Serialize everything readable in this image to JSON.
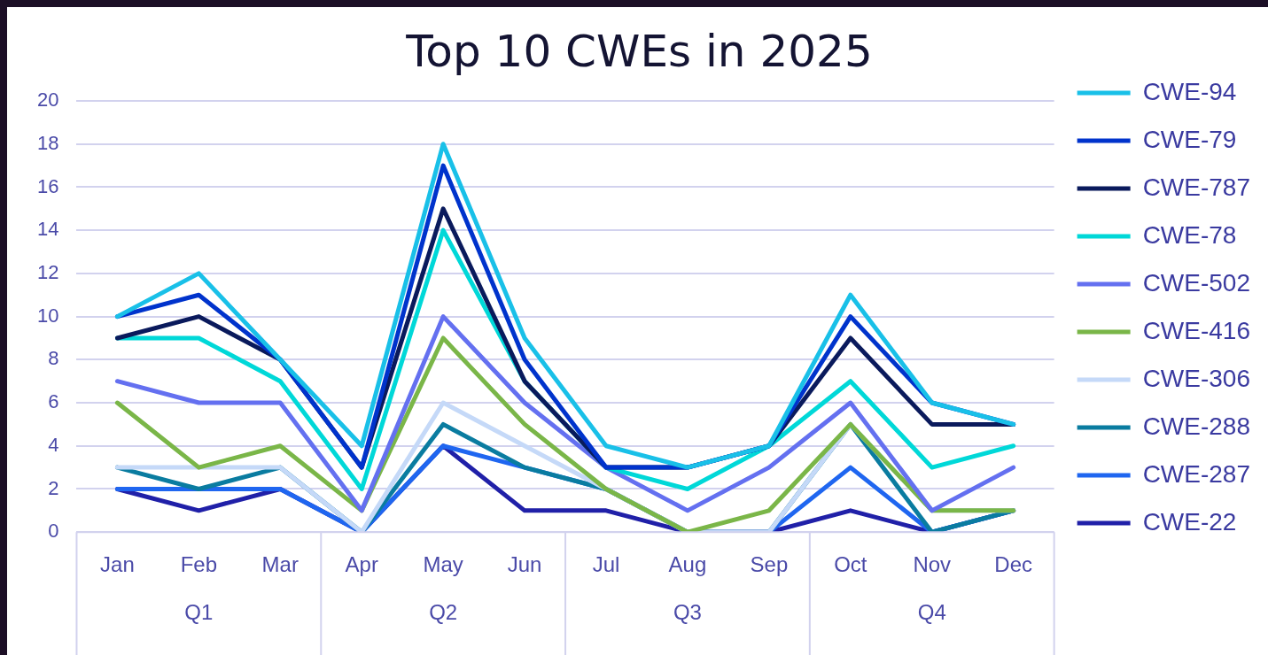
{
  "chart_data": {
    "type": "line",
    "title": "Top 10 CWEs in 2025",
    "categories": [
      "Jan",
      "Feb",
      "Mar",
      "Apr",
      "May",
      "Jun",
      "Jul",
      "Aug",
      "Sep",
      "Oct",
      "Nov",
      "Dec"
    ],
    "annotations": [
      "Q1",
      "Q2",
      "Q3",
      "Q4"
    ],
    "ylim": [
      0,
      20
    ],
    "yticks": [
      0,
      2,
      4,
      6,
      8,
      10,
      12,
      14,
      16,
      18,
      20
    ],
    "grid": "y",
    "legend": "right",
    "marker": "none",
    "line_style": "solid",
    "series": [
      {
        "name": "CWE-94",
        "color": "#19c0e8",
        "values": [
          10,
          12,
          8,
          4,
          18,
          9,
          4,
          3,
          4,
          11,
          6,
          5
        ]
      },
      {
        "name": "CWE-79",
        "color": "#0033cc",
        "values": [
          10,
          11,
          8,
          3,
          17,
          8,
          3,
          3,
          4,
          10,
          6,
          5
        ]
      },
      {
        "name": "CWE-787",
        "color": "#0a1a5c",
        "values": [
          9,
          10,
          8,
          3,
          15,
          7,
          3,
          3,
          4,
          9,
          5,
          5
        ]
      },
      {
        "name": "CWE-78",
        "color": "#00d8d8",
        "values": [
          9,
          9,
          7,
          2,
          14,
          7,
          3,
          2,
          4,
          7,
          3,
          4
        ]
      },
      {
        "name": "CWE-502",
        "color": "#6470f0",
        "values": [
          7,
          6,
          6,
          1,
          10,
          6,
          3,
          1,
          3,
          6,
          1,
          3
        ]
      },
      {
        "name": "CWE-416",
        "color": "#7ab648",
        "values": [
          6,
          3,
          4,
          1,
          9,
          5,
          2,
          0,
          1,
          5,
          1,
          1
        ]
      },
      {
        "name": "CWE-306",
        "color": "#c5d9f8",
        "values": [
          3,
          3,
          3,
          0,
          6,
          4,
          2,
          0,
          0,
          5,
          1,
          1
        ]
      },
      {
        "name": "CWE-288",
        "color": "#0a7ca0",
        "values": [
          3,
          2,
          3,
          0,
          5,
          3,
          2,
          0,
          0,
          5,
          0,
          1
        ]
      },
      {
        "name": "CWE-287",
        "color": "#1f66f0",
        "values": [
          2,
          2,
          2,
          0,
          4,
          3,
          2,
          0,
          0,
          3,
          0,
          1
        ]
      },
      {
        "name": "CWE-22",
        "color": "#2020a8",
        "values": [
          2,
          1,
          2,
          0,
          4,
          1,
          1,
          0,
          0,
          1,
          0,
          1
        ]
      }
    ]
  }
}
